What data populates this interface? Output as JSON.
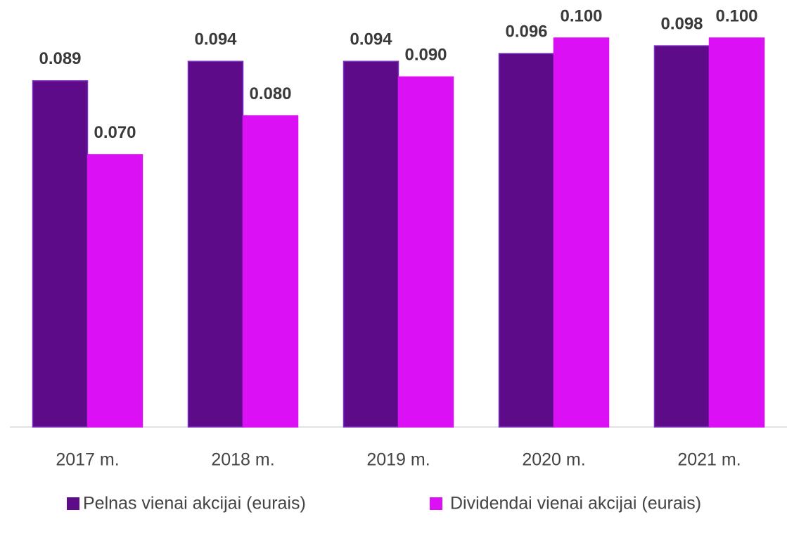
{
  "chart_data": {
    "type": "bar",
    "categories": [
      "2017 m.",
      "2018 m.",
      "2019 m.",
      "2020 m.",
      "2021 m."
    ],
    "series": [
      {
        "name": "Pelnas vienai akcijai (eurais)",
        "color": "#5e0b8a",
        "values": [
          0.089,
          0.094,
          0.094,
          0.096,
          0.098
        ],
        "value_labels": [
          "0.089",
          "0.094",
          "0.094",
          "0.096",
          "0.098"
        ]
      },
      {
        "name": "Dividendai vienai akcijai (eurais)",
        "color": "#dc10f4",
        "values": [
          0.07,
          0.08,
          0.09,
          0.1,
          0.1
        ],
        "value_labels": [
          "0.070",
          "0.080",
          "0.090",
          "0.100",
          "0.100"
        ]
      }
    ],
    "ylim": [
      0,
      0.1
    ],
    "legend": "bottom"
  }
}
